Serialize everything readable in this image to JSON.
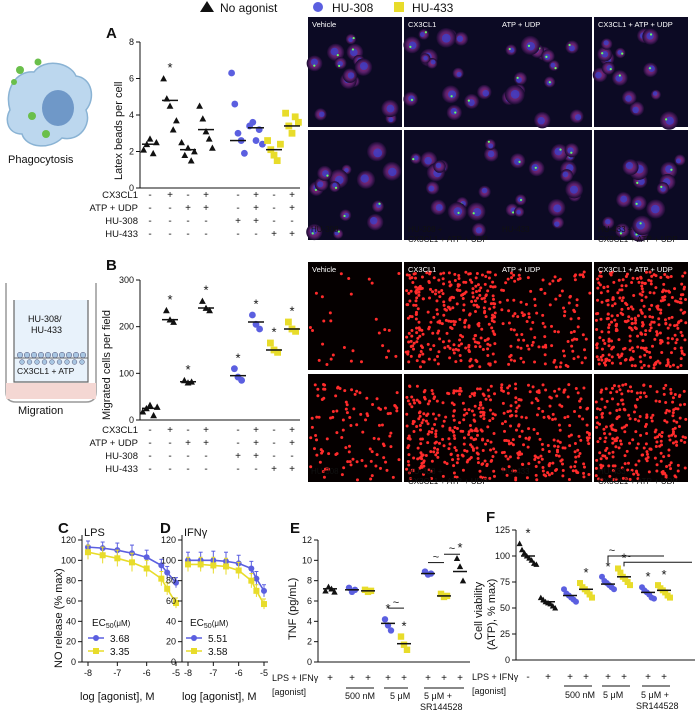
{
  "legend": {
    "items": [
      {
        "label": "No agonist",
        "marker": "triangle",
        "color": "#111111"
      },
      {
        "label": "HU-308",
        "marker": "circle",
        "color": "#5b5fe0"
      },
      {
        "label": "HU-433",
        "marker": "square",
        "color": "#e8dc2a"
      }
    ]
  },
  "panels": {
    "A": {
      "letter": "A",
      "illustration_label": "Phagocytosis",
      "ylabel": "Latex beads per cell",
      "yticks": [
        "0",
        "2",
        "4",
        "6",
        "8"
      ],
      "row_labels": [
        "CX3CL1",
        "ATP + UDP",
        "HU-308",
        "HU-433"
      ],
      "signs": [
        [
          "-",
          "+",
          "-",
          "+",
          "-",
          "+",
          "-",
          "+"
        ],
        [
          "-",
          "-",
          "+",
          "+",
          "-",
          "+",
          "-",
          "+"
        ],
        [
          "-",
          "-",
          "-",
          "-",
          "+",
          "+",
          "-",
          "-"
        ],
        [
          "-",
          "-",
          "-",
          "-",
          "-",
          "-",
          "+",
          "+"
        ]
      ],
      "star": "*",
      "micro_top": [
        "Vehicle",
        "CX3CL1",
        "ATP + UDP",
        "CX3CL1 + ATP + UDP"
      ],
      "micro_bottom": [
        "HU-308",
        "HU-308 +",
        "CX3CL1 + ATP + UDP",
        "HU-433",
        "HU-433 +",
        "CX3CL1 + ATP + UDP"
      ]
    },
    "B": {
      "letter": "B",
      "illustration_label": "Migration",
      "insert_line1": "HU-308/",
      "insert_line2": "HU-433",
      "bottom_label": "CX3CL1 + ATP",
      "ylabel": "Migrated cells per field",
      "yticks": [
        "0",
        "100",
        "200",
        "300"
      ],
      "row_labels": [
        "CX3CL1",
        "ATP + UDP",
        "HU-308",
        "HU-433"
      ],
      "signs": [
        [
          "-",
          "+",
          "-",
          "+",
          "-",
          "+",
          "-",
          "+"
        ],
        [
          "-",
          "-",
          "+",
          "+",
          "-",
          "+",
          "-",
          "+"
        ],
        [
          "-",
          "-",
          "-",
          "-",
          "+",
          "+",
          "-",
          "-"
        ],
        [
          "-",
          "-",
          "-",
          "-",
          "-",
          "-",
          "+",
          "+"
        ]
      ],
      "star": "*",
      "micro_top": [
        "Vehicle",
        "CX3CL1",
        "ATP + UDP",
        "CX3CL1 + ATP + UDP"
      ],
      "micro_bottom": [
        "HU-308",
        "HU-308 +",
        "CX3CL1 + ATP + UDP",
        "HU-433",
        "HU-433 +",
        "CX3CL1 + ATP + UDP"
      ]
    },
    "C": {
      "letter": "C",
      "title": "LPS",
      "ylabel": "NO release (% max)",
      "xlabel": "log [agonist], M",
      "yticks": [
        "0",
        "20",
        "40",
        "60",
        "80",
        "100",
        "120"
      ],
      "xticks": [
        "-8",
        "-7",
        "-6",
        "-5"
      ],
      "ec50_label": "EC",
      "ec50_sub": "50",
      "ec50_unit": "(μM)",
      "ec50_values": [
        "3.68",
        "3.35"
      ]
    },
    "D": {
      "letter": "D",
      "title": "IFNγ",
      "ylabel": "",
      "xlabel": "log [agonist], M",
      "yticks": [
        "0",
        "20",
        "40",
        "60",
        "80",
        "100",
        "120"
      ],
      "xticks": [
        "-8",
        "-7",
        "-6",
        "-5"
      ],
      "ec50_label": "EC",
      "ec50_sub": "50",
      "ec50_unit": "(μM)",
      "ec50_values": [
        "5.51",
        "3.58"
      ]
    },
    "E": {
      "letter": "E",
      "ylabel": "TNF (pg/mL)",
      "yticks": [
        "0",
        "2",
        "4",
        "6",
        "8",
        "10",
        "12"
      ],
      "row1_label": "LPS + IFNγ",
      "row2_label": "[agonist]",
      "row1_signs": [
        "+",
        "+",
        "+",
        "+",
        "+",
        "+",
        "+"
      ],
      "groups": [
        "500 nM",
        "5 μM",
        "5 μM +",
        "SR144528"
      ],
      "star": "*",
      "tilde": "~"
    },
    "F": {
      "letter": "F",
      "ylabel": "Cell viability",
      "ylabel2": "(ATP), % max)",
      "yticks": [
        "0",
        "25",
        "50",
        "75",
        "100",
        "125"
      ],
      "row1_label": "LPS + IFNγ",
      "row2_label": "[agonist]",
      "row1_signs": [
        "-",
        "+",
        "+",
        "+",
        "+",
        "+",
        "+",
        "+"
      ],
      "groups": [
        "500 nM",
        "5 μM",
        "5 μM +",
        "SR144528"
      ],
      "star": "*",
      "tilde": "~"
    }
  },
  "chart_data": [
    {
      "type": "scatter",
      "panel": "A",
      "ylabel": "Latex beads per cell",
      "ylim": [
        0,
        8
      ],
      "groups": [
        {
          "marker": "triangle",
          "mean": 2.4,
          "points": [
            2.1,
            2.4,
            2.7,
            1.9,
            2.5
          ]
        },
        {
          "marker": "triangle",
          "mean": 4.8,
          "points": [
            6.0,
            4.9,
            4.5,
            3.2,
            3.7
          ]
        },
        {
          "marker": "triangle",
          "mean": 2.1,
          "points": [
            2.5,
            1.8,
            2.2,
            1.5,
            2.0
          ]
        },
        {
          "marker": "triangle",
          "mean": 3.2,
          "points": [
            4.5,
            3.8,
            3.1,
            2.7,
            2.2
          ]
        },
        {
          "marker": "circle",
          "mean": 2.6,
          "points": [
            6.3,
            4.6,
            3.0,
            2.6,
            1.9
          ]
        },
        {
          "marker": "circle",
          "mean": 3.3,
          "points": [
            3.4,
            3.6,
            2.6,
            3.2,
            2.4
          ]
        },
        {
          "marker": "square",
          "mean": 2.1,
          "points": [
            2.6,
            2.1,
            1.8,
            1.5,
            2.4
          ]
        },
        {
          "marker": "square",
          "mean": 3.4,
          "points": [
            4.1,
            3.4,
            3.0,
            3.9,
            3.6
          ]
        }
      ],
      "significant_groups": [
        2
      ]
    },
    {
      "type": "scatter",
      "panel": "B",
      "ylabel": "Migrated cells per field",
      "ylim": [
        0,
        300
      ],
      "groups": [
        {
          "marker": "triangle",
          "mean": 25,
          "points": [
            18,
            25,
            32,
            10,
            28
          ]
        },
        {
          "marker": "triangle",
          "mean": 215,
          "points": [
            235,
            215,
            210
          ]
        },
        {
          "marker": "triangle",
          "mean": 82,
          "points": [
            85,
            80,
            82
          ]
        },
        {
          "marker": "triangle",
          "mean": 240,
          "points": [
            255,
            240,
            235
          ]
        },
        {
          "marker": "circle",
          "mean": 95,
          "points": [
            110,
            92,
            85
          ]
        },
        {
          "marker": "circle",
          "mean": 210,
          "points": [
            225,
            205,
            195
          ]
        },
        {
          "marker": "square",
          "mean": 150,
          "points": [
            165,
            150,
            145
          ]
        },
        {
          "marker": "square",
          "mean": 195,
          "points": [
            210,
            195,
            190
          ]
        }
      ],
      "significant_groups": [
        2,
        3,
        4,
        5,
        6,
        7,
        8
      ]
    },
    {
      "type": "line",
      "panel": "C",
      "title": "LPS",
      "xlabel": "log [agonist], M",
      "ylabel": "NO release (% max)",
      "xlim": [
        -8,
        -5
      ],
      "ylim": [
        0,
        120
      ],
      "series": [
        {
          "marker": "circle",
          "color": "#5b5fe0",
          "ec50_uM": 3.68,
          "x": [
            -8,
            -7.5,
            -7,
            -6.5,
            -6,
            -5.5,
            -5.3,
            -5
          ],
          "y": [
            113,
            112,
            110,
            107,
            103,
            95,
            88,
            78
          ],
          "err": [
            6,
            6,
            7,
            8,
            7,
            6,
            6,
            5
          ]
        },
        {
          "marker": "square",
          "color": "#e8dc2a",
          "ec50_uM": 3.35,
          "x": [
            -8,
            -7.5,
            -7,
            -6.5,
            -6,
            -5.5,
            -5.3,
            -5
          ],
          "y": [
            108,
            105,
            102,
            98,
            92,
            82,
            72,
            58
          ],
          "err": [
            7,
            8,
            8,
            9,
            8,
            7,
            6,
            5
          ]
        }
      ]
    },
    {
      "type": "line",
      "panel": "D",
      "title": "IFNγ",
      "xlabel": "log [agonist], M",
      "xlim": [
        -8,
        -5
      ],
      "ylim": [
        0,
        120
      ],
      "series": [
        {
          "marker": "circle",
          "color": "#5b5fe0",
          "ec50_uM": 5.51,
          "x": [
            -8,
            -7.5,
            -7,
            -6.5,
            -6,
            -5.5,
            -5.3,
            -5
          ],
          "y": [
            100,
            100,
            100,
            99,
            97,
            92,
            82,
            70
          ],
          "err": [
            8,
            8,
            9,
            9,
            8,
            7,
            7,
            6
          ]
        },
        {
          "marker": "square",
          "color": "#e8dc2a",
          "ec50_uM": 3.58,
          "x": [
            -8,
            -7.5,
            -7,
            -6.5,
            -6,
            -5.5,
            -5.3,
            -5
          ],
          "y": [
            96,
            96,
            95,
            94,
            90,
            80,
            70,
            57
          ],
          "err": [
            7,
            7,
            8,
            8,
            8,
            7,
            6,
            5
          ]
        }
      ]
    },
    {
      "type": "scatter",
      "panel": "E",
      "ylabel": "TNF (pg/mL)",
      "ylim": [
        0,
        12
      ],
      "groups": [
        {
          "marker": "triangle",
          "mean": 7.2,
          "points": [
            7.0,
            7.4,
            7.2,
            6.9
          ]
        },
        {
          "marker": "circle",
          "mean": 7.1,
          "points": [
            7.3,
            6.9,
            7.1
          ]
        },
        {
          "marker": "square",
          "mean": 7.0,
          "points": [
            7.1,
            6.9,
            7.0
          ]
        },
        {
          "marker": "circle",
          "mean": 3.8,
          "points": [
            4.2,
            3.6,
            3.1
          ]
        },
        {
          "marker": "square",
          "mean": 1.8,
          "points": [
            2.5,
            1.7,
            1.2
          ]
        },
        {
          "marker": "circle",
          "mean": 8.7,
          "points": [
            8.9,
            8.6,
            8.7
          ]
        },
        {
          "marker": "square",
          "mean": 6.5,
          "points": [
            6.7,
            6.4,
            6.5
          ]
        },
        {
          "marker": "triangle",
          "mean": 8.9,
          "points": [
            10.2,
            9.4,
            8.0
          ]
        }
      ],
      "significant_groups": [
        4,
        5,
        8
      ]
    },
    {
      "type": "scatter",
      "panel": "F",
      "ylabel": "Cell viability (ATP), % max)",
      "ylim": [
        0,
        125
      ],
      "groups": [
        {
          "marker": "triangle",
          "mean": 100,
          "points": [
            112,
            106,
            103,
            100,
            98,
            96,
            93,
            92
          ]
        },
        {
          "marker": "triangle",
          "mean": 56,
          "points": [
            60,
            58,
            56,
            55,
            54,
            52,
            50
          ]
        },
        {
          "marker": "circle",
          "mean": 62,
          "points": [
            68,
            64,
            62,
            60,
            58,
            56
          ]
        },
        {
          "marker": "square",
          "mean": 68,
          "points": [
            74,
            70,
            68,
            66,
            63,
            60
          ]
        },
        {
          "marker": "circle",
          "mean": 73,
          "points": [
            80,
            76,
            74,
            72,
            70,
            68
          ]
        },
        {
          "marker": "square",
          "mean": 80,
          "points": [
            88,
            84,
            80,
            78,
            75,
            72
          ]
        },
        {
          "marker": "circle",
          "mean": 65,
          "points": [
            70,
            67,
            65,
            63,
            60,
            59
          ]
        },
        {
          "marker": "square",
          "mean": 67,
          "points": [
            72,
            69,
            67,
            65,
            62,
            60
          ]
        }
      ],
      "significant_groups": [
        1,
        4,
        5,
        6,
        7,
        8
      ]
    }
  ]
}
